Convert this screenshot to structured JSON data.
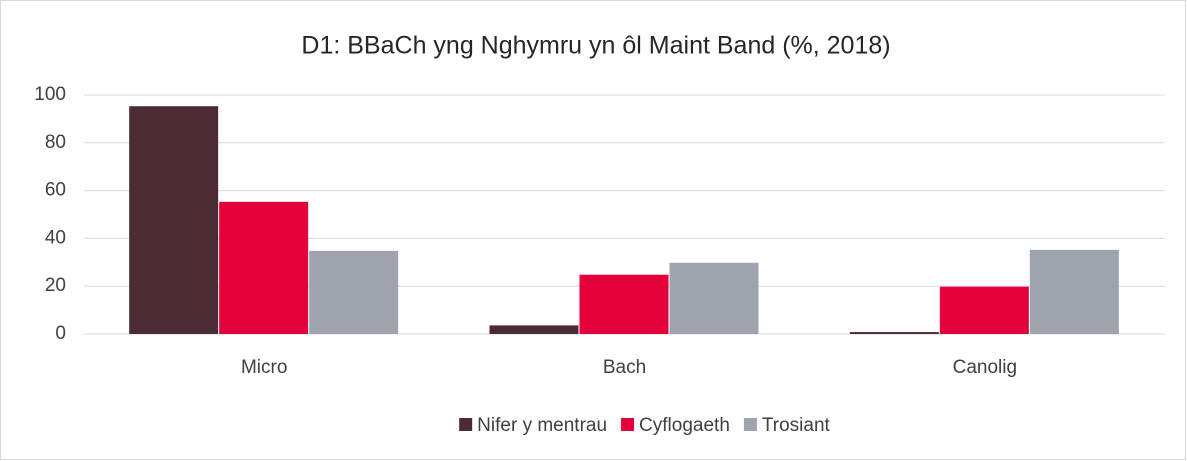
{
  "chart_data": {
    "type": "bar",
    "title": "D1: BBaCh yng Nghymru yn ôl Maint Band (%, 2018)",
    "categories": [
      "Micro",
      "Bach",
      "Canolig"
    ],
    "series": [
      {
        "name": "Nifer y mentrau",
        "color": "#4b2c35",
        "values": [
          95.3,
          3.6,
          0.8
        ]
      },
      {
        "name": "Cyflogaeth",
        "color": "#e4003b",
        "values": [
          55.3,
          24.8,
          19.8
        ]
      },
      {
        "name": "Trosiant",
        "color": "#9ea3ad",
        "values": [
          34.8,
          29.8,
          35.2
        ]
      }
    ],
    "ylim": [
      0,
      100
    ],
    "yticks": [
      0,
      20,
      40,
      60,
      80,
      100
    ],
    "grid": true,
    "legend": "bottom"
  }
}
